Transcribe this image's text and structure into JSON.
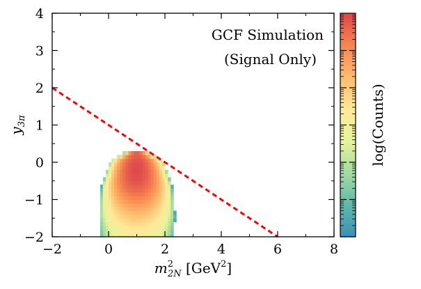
{
  "chart_data": {
    "type": "heatmap",
    "annotation": {
      "line1": "GCF Simulation",
      "line2": "(Signal Only)"
    },
    "xlabel": {
      "var": "m",
      "sup": "2",
      "sub": "2N",
      "unit_open": " [GeV",
      "unit_sup": "2",
      "unit_close": "]"
    },
    "ylabel": {
      "var": "y",
      "sub": "3π"
    },
    "colorbar_label": "log(Counts)",
    "xlim": [
      -2,
      8
    ],
    "ylim": [
      -2,
      4
    ],
    "xticks": [
      {
        "value": -2,
        "label": "−2"
      },
      {
        "value": 0,
        "label": "0"
      },
      {
        "value": 2,
        "label": "2"
      },
      {
        "value": 4,
        "label": "4"
      },
      {
        "value": 6,
        "label": "6"
      },
      {
        "value": 8,
        "label": "8"
      }
    ],
    "yticks": [
      {
        "value": -2,
        "label": "−2"
      },
      {
        "value": -1,
        "label": "−1"
      },
      {
        "value": 0,
        "label": "0"
      },
      {
        "value": 1,
        "label": "1"
      },
      {
        "value": 2,
        "label": "2"
      },
      {
        "value": 3,
        "label": "3"
      },
      {
        "value": 4,
        "label": "4"
      }
    ],
    "bin": {
      "dx": 0.1,
      "dy": 0.1
    },
    "distribution": {
      "center_x": 1.0,
      "core_y": -0.2,
      "x_min": -0.3,
      "x_max": 2.4,
      "y_bottom": -2.0,
      "y_top": 0.35
    },
    "cut_line": {
      "x": [
        -2,
        6
      ],
      "y": [
        2,
        -2
      ],
      "color": "#ff0000",
      "style": "dashed"
    },
    "colormap": [
      "#3f8fb8",
      "#5fb9a8",
      "#a3dba2",
      "#e7f39c",
      "#fee99a",
      "#fdbd6e",
      "#f7874f",
      "#dd4a4c"
    ],
    "grid": false
  }
}
